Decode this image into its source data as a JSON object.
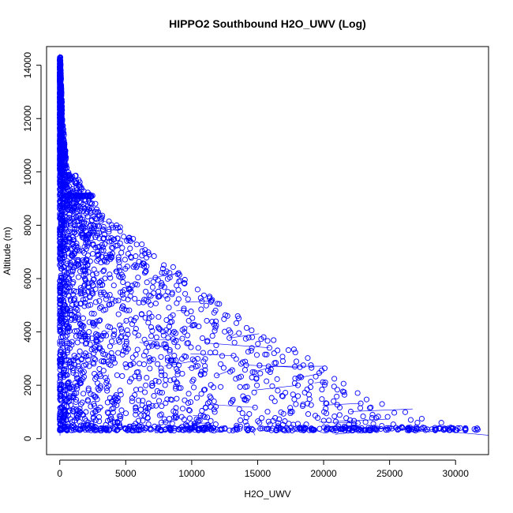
{
  "chart_data": {
    "type": "scatter",
    "title": "HIPPO2 Southbound H2O_UWV (Log)",
    "xlabel": "H2O_UWV",
    "ylabel": "Altitude (m)",
    "xlim": [
      -1000,
      32500
    ],
    "ylim": [
      -600,
      14700
    ],
    "x_ticks": [
      0,
      5000,
      10000,
      15000,
      20000,
      25000,
      30000
    ],
    "y_ticks": [
      0,
      2000,
      4000,
      6000,
      8000,
      10000,
      12000,
      14000
    ],
    "x_tick_labels": [
      "0",
      "5000",
      "10000",
      "15000",
      "20000",
      "25000",
      "30000"
    ],
    "y_tick_labels": [
      "0",
      "2000",
      "4000",
      "6000",
      "8000",
      "10000",
      "12000",
      "14000"
    ],
    "grid": false,
    "point_style": "open-circle",
    "series": [
      {
        "color": "#0000ff",
        "envelope": [
          [
            50,
            14300
          ],
          [
            200,
            12000
          ],
          [
            600,
            10000
          ],
          [
            1500,
            9800
          ],
          [
            2500,
            9000
          ],
          [
            4500,
            8000
          ],
          [
            7000,
            7000
          ],
          [
            9000,
            6300
          ],
          [
            11000,
            5500
          ],
          [
            14000,
            4500
          ],
          [
            16000,
            3900
          ],
          [
            19000,
            3000
          ],
          [
            22000,
            2000
          ],
          [
            25000,
            1200
          ],
          [
            28000,
            700
          ],
          [
            31800,
            300
          ]
        ],
        "plateau_9000m": {
          "x_range": [
            200,
            2500
          ],
          "y": 9100
        },
        "surface_floor_y": 300
      }
    ]
  }
}
